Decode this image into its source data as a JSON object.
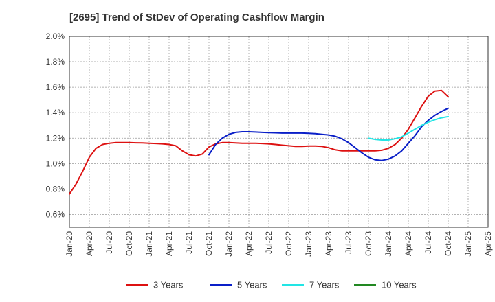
{
  "chart_data": {
    "type": "line",
    "title": "[2695]  Trend of StDev of Operating Cashflow Margin",
    "xlabel": "",
    "ylabel": "",
    "x_ticks": [
      "Jan-20",
      "Apr-20",
      "Jul-20",
      "Oct-20",
      "Jan-21",
      "Apr-21",
      "Jul-21",
      "Oct-21",
      "Jan-22",
      "Apr-22",
      "Jul-22",
      "Oct-22",
      "Jan-23",
      "Apr-23",
      "Jul-23",
      "Oct-23",
      "Jan-24",
      "Apr-24",
      "Jul-24",
      "Oct-24",
      "Jan-25",
      "Apr-25"
    ],
    "y_ticks": [
      "0.6%",
      "0.8%",
      "1.0%",
      "1.2%",
      "1.4%",
      "1.6%",
      "1.8%",
      "2.0%"
    ],
    "ylim": [
      0.5,
      2.0
    ],
    "grid": true,
    "legend_position": "bottom",
    "series": [
      {
        "name": "3 Years",
        "color": "#dd1111",
        "x": [
          "2020-01",
          "2020-02",
          "2020-03",
          "2020-04",
          "2020-05",
          "2020-06",
          "2020-07",
          "2020-08",
          "2020-09",
          "2020-10",
          "2020-11",
          "2020-12",
          "2021-01",
          "2021-02",
          "2021-03",
          "2021-04",
          "2021-05",
          "2021-06",
          "2021-07",
          "2021-08",
          "2021-09",
          "2021-10",
          "2021-11",
          "2021-12",
          "2022-01",
          "2022-02",
          "2022-03",
          "2022-04",
          "2022-05",
          "2022-06",
          "2022-07",
          "2022-08",
          "2022-09",
          "2022-10",
          "2022-11",
          "2022-12",
          "2023-01",
          "2023-02",
          "2023-03",
          "2023-04",
          "2023-05",
          "2023-06",
          "2023-07",
          "2023-08",
          "2023-09",
          "2023-10",
          "2023-11",
          "2023-12",
          "2024-01",
          "2024-02",
          "2024-03",
          "2024-04",
          "2024-05",
          "2024-06",
          "2024-07",
          "2024-08",
          "2024-09",
          "2024-10"
        ],
        "values": [
          0.76,
          0.84,
          0.94,
          1.05,
          1.12,
          1.15,
          1.16,
          1.165,
          1.165,
          1.165,
          1.163,
          1.162,
          1.16,
          1.158,
          1.155,
          1.15,
          1.14,
          1.1,
          1.07,
          1.06,
          1.075,
          1.13,
          1.155,
          1.165,
          1.165,
          1.162,
          1.16,
          1.16,
          1.16,
          1.158,
          1.155,
          1.15,
          1.145,
          1.14,
          1.135,
          1.135,
          1.138,
          1.138,
          1.135,
          1.125,
          1.108,
          1.1,
          1.1,
          1.1,
          1.1,
          1.1,
          1.1,
          1.105,
          1.12,
          1.15,
          1.2,
          1.27,
          1.36,
          1.45,
          1.53,
          1.57,
          1.575,
          1.525
        ]
      },
      {
        "name": "5 Years",
        "color": "#0a1fc8",
        "x": [
          "2021-10",
          "2021-11",
          "2021-12",
          "2022-01",
          "2022-02",
          "2022-03",
          "2022-04",
          "2022-05",
          "2022-06",
          "2022-07",
          "2022-08",
          "2022-09",
          "2022-10",
          "2022-11",
          "2022-12",
          "2023-01",
          "2023-02",
          "2023-03",
          "2023-04",
          "2023-05",
          "2023-06",
          "2023-07",
          "2023-08",
          "2023-09",
          "2023-10",
          "2023-11",
          "2023-12",
          "2024-01",
          "2024-02",
          "2024-03",
          "2024-04",
          "2024-05",
          "2024-06",
          "2024-07",
          "2024-08",
          "2024-09",
          "2024-10"
        ],
        "values": [
          1.07,
          1.15,
          1.2,
          1.23,
          1.245,
          1.25,
          1.25,
          1.248,
          1.245,
          1.243,
          1.242,
          1.24,
          1.24,
          1.24,
          1.24,
          1.238,
          1.235,
          1.23,
          1.225,
          1.215,
          1.195,
          1.165,
          1.125,
          1.085,
          1.05,
          1.03,
          1.025,
          1.035,
          1.06,
          1.1,
          1.16,
          1.22,
          1.29,
          1.34,
          1.38,
          1.41,
          1.435
        ]
      },
      {
        "name": "7 Years",
        "color": "#22e5e5",
        "x": [
          "2023-10",
          "2023-11",
          "2023-12",
          "2024-01",
          "2024-02",
          "2024-03",
          "2024-04",
          "2024-05",
          "2024-06",
          "2024-07",
          "2024-08",
          "2024-09",
          "2024-10"
        ],
        "values": [
          1.2,
          1.19,
          1.185,
          1.185,
          1.195,
          1.21,
          1.24,
          1.27,
          1.3,
          1.325,
          1.345,
          1.36,
          1.37
        ]
      },
      {
        "name": "10 Years",
        "color": "#228822",
        "x": [],
        "values": []
      }
    ]
  }
}
